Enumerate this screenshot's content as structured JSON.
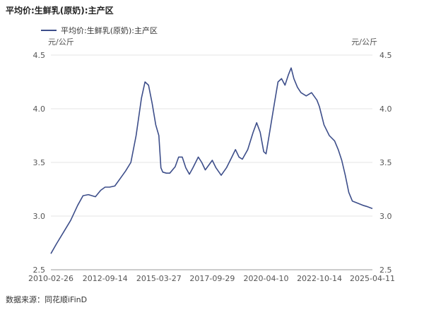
{
  "title": "平均价:生鲜乳(原奶):主产区",
  "source": "数据来源：同花顺iFinD",
  "colors": {
    "line": "#3d4e8a",
    "grid": "#e6e6e6",
    "axis": "#999999"
  },
  "chart_data": {
    "type": "line",
    "title": "平均价:生鲜乳(原奶):主产区",
    "ylabel_left": "元/公斤",
    "ylabel_right": "元/公斤",
    "ylim": [
      2.5,
      4.5
    ],
    "yticks": [
      "2.5",
      "3.0",
      "3.5",
      "4.0",
      "4.5"
    ],
    "xticks": [
      "2010-02-26",
      "2012-09-14",
      "2015-03-27",
      "2017-09-29",
      "2020-04-10",
      "2022-10-14",
      "2025-04-11"
    ],
    "grid": true,
    "legend_position": "top-left",
    "series": [
      {
        "name": "平均价:生鲜乳(原奶):主产区",
        "points": [
          [
            "2010-02-26",
            2.65
          ],
          [
            "2010-06-01",
            2.74
          ],
          [
            "2010-10-01",
            2.85
          ],
          [
            "2011-02-01",
            2.96
          ],
          [
            "2011-06-01",
            3.1
          ],
          [
            "2011-09-01",
            3.19
          ],
          [
            "2011-12-01",
            3.2
          ],
          [
            "2012-02-01",
            3.19
          ],
          [
            "2012-04-01",
            3.18
          ],
          [
            "2012-07-01",
            3.24
          ],
          [
            "2012-09-14",
            3.27
          ],
          [
            "2012-12-01",
            3.27
          ],
          [
            "2013-03-01",
            3.28
          ],
          [
            "2013-06-01",
            3.35
          ],
          [
            "2013-09-01",
            3.42
          ],
          [
            "2013-12-01",
            3.5
          ],
          [
            "2014-03-01",
            3.75
          ],
          [
            "2014-06-01",
            4.1
          ],
          [
            "2014-08-01",
            4.25
          ],
          [
            "2014-10-01",
            4.22
          ],
          [
            "2014-12-01",
            4.05
          ],
          [
            "2015-02-01",
            3.85
          ],
          [
            "2015-03-27",
            3.75
          ],
          [
            "2015-05-01",
            3.45
          ],
          [
            "2015-06-01",
            3.41
          ],
          [
            "2015-08-01",
            3.4
          ],
          [
            "2015-10-01",
            3.4
          ],
          [
            "2016-01-01",
            3.46
          ],
          [
            "2016-03-01",
            3.55
          ],
          [
            "2016-05-01",
            3.55
          ],
          [
            "2016-07-01",
            3.45
          ],
          [
            "2016-09-01",
            3.39
          ],
          [
            "2016-11-01",
            3.45
          ],
          [
            "2017-02-01",
            3.55
          ],
          [
            "2017-04-01",
            3.5
          ],
          [
            "2017-06-01",
            3.43
          ],
          [
            "2017-09-29",
            3.52
          ],
          [
            "2017-12-01",
            3.45
          ],
          [
            "2018-03-01",
            3.38
          ],
          [
            "2018-06-01",
            3.45
          ],
          [
            "2018-09-01",
            3.55
          ],
          [
            "2018-11-01",
            3.62
          ],
          [
            "2019-01-01",
            3.55
          ],
          [
            "2019-03-01",
            3.53
          ],
          [
            "2019-06-01",
            3.62
          ],
          [
            "2019-09-01",
            3.78
          ],
          [
            "2019-11-01",
            3.87
          ],
          [
            "2020-01-01",
            3.78
          ],
          [
            "2020-03-01",
            3.6
          ],
          [
            "2020-04-10",
            3.58
          ],
          [
            "2020-06-01",
            3.75
          ],
          [
            "2020-09-01",
            4.05
          ],
          [
            "2020-11-01",
            4.25
          ],
          [
            "2021-01-01",
            4.28
          ],
          [
            "2021-03-01",
            4.22
          ],
          [
            "2021-05-01",
            4.32
          ],
          [
            "2021-06-15",
            4.38
          ],
          [
            "2021-08-01",
            4.28
          ],
          [
            "2021-10-01",
            4.2
          ],
          [
            "2021-12-01",
            4.15
          ],
          [
            "2022-03-01",
            4.12
          ],
          [
            "2022-06-01",
            4.15
          ],
          [
            "2022-09-01",
            4.08
          ],
          [
            "2022-10-14",
            4.02
          ],
          [
            "2023-01-01",
            3.85
          ],
          [
            "2023-04-01",
            3.75
          ],
          [
            "2023-07-01",
            3.7
          ],
          [
            "2023-09-01",
            3.62
          ],
          [
            "2023-11-01",
            3.52
          ],
          [
            "2024-01-01",
            3.38
          ],
          [
            "2024-03-01",
            3.22
          ],
          [
            "2024-05-01",
            3.14
          ],
          [
            "2024-08-01",
            3.12
          ],
          [
            "2024-11-01",
            3.1
          ],
          [
            "2025-01-01",
            3.09
          ],
          [
            "2025-04-11",
            3.07
          ]
        ]
      }
    ]
  }
}
